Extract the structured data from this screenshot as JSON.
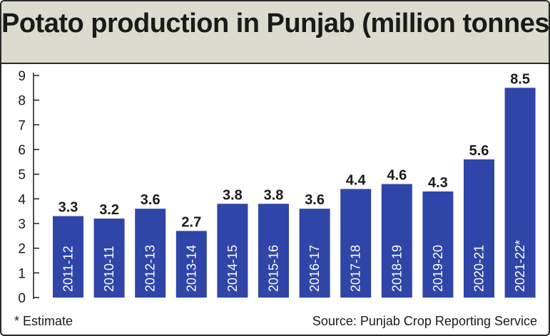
{
  "title": "Potato production in Punjab (million tonnes)",
  "footnote": "* Estimate",
  "source": "Source: Punjab Crop Reporting Service",
  "colors": {
    "bar": "#2f45a8",
    "title_band": "#dcdcce",
    "text": "#1a1a1a"
  },
  "chart_data": {
    "type": "bar",
    "title": "Potato production in Punjab (million tonnes)",
    "xlabel": "",
    "ylabel": "",
    "categories": [
      "2011-12",
      "2010-11",
      "2012-13",
      "2013-14",
      "2014-15",
      "2015-16",
      "2016-17",
      "2017-18",
      "2018-19",
      "2019-20",
      "2020-21",
      "2021-22*"
    ],
    "values": [
      3.3,
      3.2,
      3.6,
      2.7,
      3.8,
      3.8,
      3.6,
      4.4,
      4.6,
      4.3,
      5.6,
      8.5
    ],
    "value_labels": [
      "3.3",
      "3.2",
      "3.6",
      "2.7",
      "3.8",
      "3.8",
      "3.6",
      "4.4",
      "4.6",
      "4.3",
      "5.6",
      "8.5"
    ],
    "ylim": [
      0,
      9
    ],
    "yticks": [
      "0",
      "1",
      "2",
      "3",
      "4",
      "5",
      "6",
      "7",
      "8",
      "9"
    ],
    "grid": false,
    "legend": "none"
  }
}
